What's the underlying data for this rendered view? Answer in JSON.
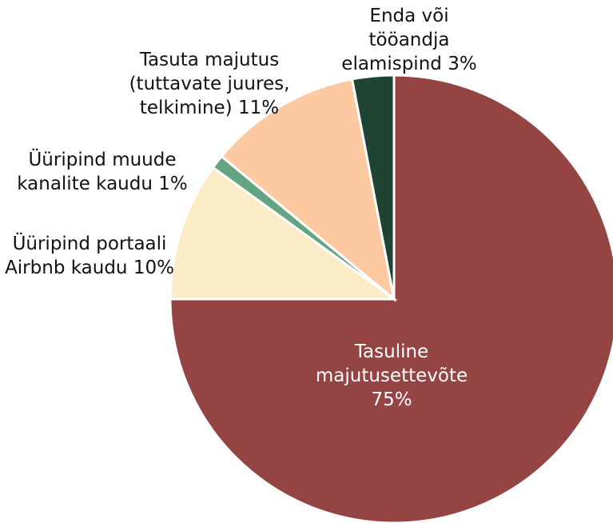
{
  "chart_data": {
    "type": "pie",
    "categories": [
      "Tasuline majutusettevõte",
      "Üüripind portaali Airbnb kaudu",
      "Üüripind muude kanalite kaudu",
      "Tasuta majutus (tuttavate juures, telkimine)",
      "Enda või tööandja elamispind"
    ],
    "values": [
      75,
      10,
      1,
      11,
      3
    ],
    "value_labels": [
      "75%",
      "10%",
      "1%",
      "11%",
      "3%"
    ],
    "colors": [
      "#944543",
      "#fbecc8",
      "#65a483",
      "#fdc9a1",
      "#1f4532"
    ]
  }
}
